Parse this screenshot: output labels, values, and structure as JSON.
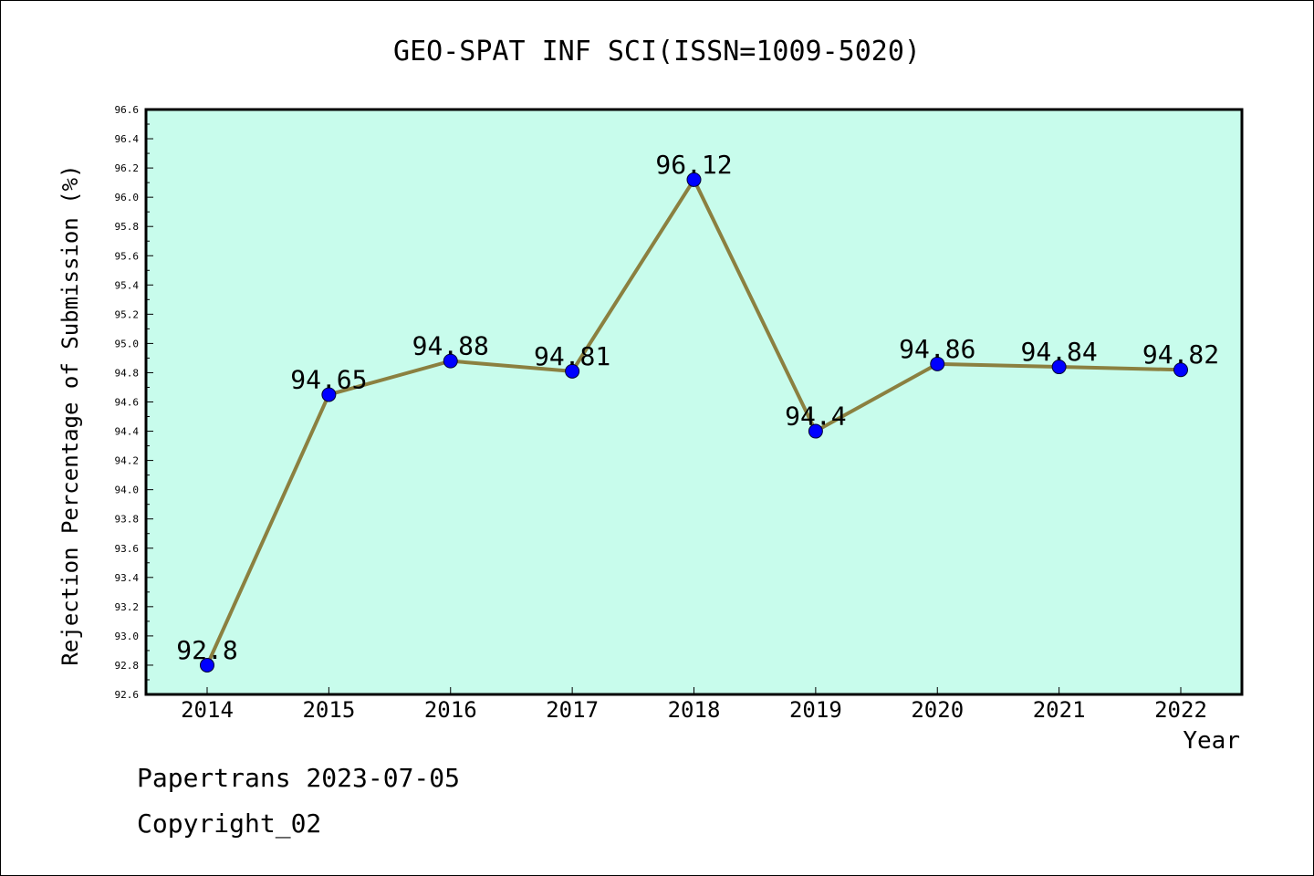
{
  "chart_data": {
    "type": "line",
    "title": "GEO-SPAT INF SCI(ISSN=1009-5020)",
    "xlabel": "Year",
    "ylabel": "Rejection Percentage of Submission (%)",
    "categories": [
      "2014",
      "2015",
      "2016",
      "2017",
      "2018",
      "2019",
      "2020",
      "2021",
      "2022"
    ],
    "series": [
      {
        "values": [
          92.8,
          94.65,
          94.88,
          94.81,
          96.12,
          94.4,
          94.86,
          94.84,
          94.82
        ]
      }
    ],
    "data_labels": [
      "92.8",
      "94.65",
      "94.88",
      "94.81",
      "96.12",
      "94.4",
      "94.86",
      "94.84",
      "94.82"
    ],
    "ylim": [
      92.6,
      96.6
    ],
    "yticks": [
      "92.6",
      "92.8",
      "93.0",
      "93.2",
      "93.4",
      "93.6",
      "93.8",
      "94.0",
      "94.2",
      "94.4",
      "94.6",
      "94.8",
      "95.0",
      "95.2",
      "95.4",
      "95.6",
      "95.8",
      "96.0",
      "96.2",
      "96.4",
      "96.6"
    ],
    "grid": false,
    "legend": "none",
    "colors": {
      "plot_background": "#c8fcec",
      "line": "#8b8040",
      "marker": "#0000ff"
    }
  },
  "footer": {
    "credit": "Papertrans 2023-07-05",
    "copyright": "Copyright_02"
  }
}
